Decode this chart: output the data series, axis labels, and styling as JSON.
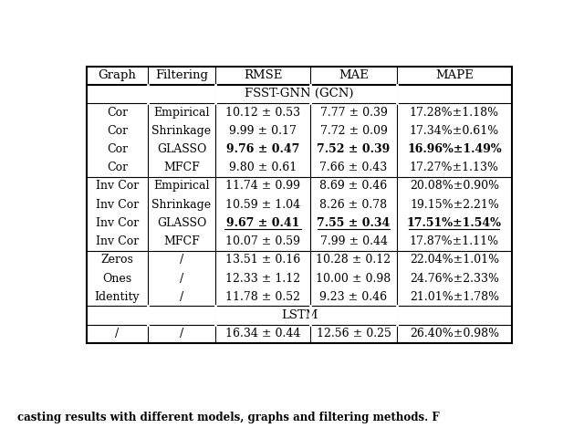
{
  "caption": "casting results with different models, graphs and filtering methods. F",
  "header": [
    "Graph",
    "Filtering",
    "RMSE",
    "MAE",
    "MAPE"
  ],
  "section_fsst": "FSST-GNN (GCN)",
  "section_lstm": "LSTM",
  "rows": [
    {
      "graph": "Cor",
      "filtering": "Empirical",
      "rmse": "10.12 ± 0.53",
      "mae": "7.77 ± 0.39",
      "mape": "17.28%±1.18%",
      "bold": false,
      "underline": false
    },
    {
      "graph": "Cor",
      "filtering": "Shrinkage",
      "rmse": "9.99 ± 0.17",
      "mae": "7.72 ± 0.09",
      "mape": "17.34%±0.61%",
      "bold": false,
      "underline": false
    },
    {
      "graph": "Cor",
      "filtering": "GLASSO",
      "rmse": "9.76 ± 0.47",
      "mae": "7.52 ± 0.39",
      "mape": "16.96%±1.49%",
      "bold": true,
      "underline": false
    },
    {
      "graph": "Cor",
      "filtering": "MFCF",
      "rmse": "9.80 ± 0.61",
      "mae": "7.66 ± 0.43",
      "mape": "17.27%±1.13%",
      "bold": false,
      "underline": false
    },
    {
      "graph": "Inv Cor",
      "filtering": "Empirical",
      "rmse": "11.74 ± 0.99",
      "mae": "8.69 ± 0.46",
      "mape": "20.08%±0.90%",
      "bold": false,
      "underline": false
    },
    {
      "graph": "Inv Cor",
      "filtering": "Shrinkage",
      "rmse": "10.59 ± 1.04",
      "mae": "8.26 ± 0.78",
      "mape": "19.15%±2.21%",
      "bold": false,
      "underline": false
    },
    {
      "graph": "Inv Cor",
      "filtering": "GLASSO",
      "rmse": "9.67 ± 0.41",
      "mae": "7.55 ± 0.34",
      "mape": "17.51%±1.54%",
      "bold": true,
      "underline": true
    },
    {
      "graph": "Inv Cor",
      "filtering": "MFCF",
      "rmse": "10.07 ± 0.59",
      "mae": "7.99 ± 0.44",
      "mape": "17.87%±1.11%",
      "bold": false,
      "underline": false
    },
    {
      "graph": "Zeros",
      "filtering": "/",
      "rmse": "13.51 ± 0.16",
      "mae": "10.28 ± 0.12",
      "mape": "22.04%±1.01%",
      "bold": false,
      "underline": false
    },
    {
      "graph": "Ones",
      "filtering": "/",
      "rmse": "12.33 ± 1.12",
      "mae": "10.00 ± 0.98",
      "mape": "24.76%±2.33%",
      "bold": false,
      "underline": false
    },
    {
      "graph": "Identity",
      "filtering": "/",
      "rmse": "11.78 ± 0.52",
      "mae": "9.23 ± 0.46",
      "mape": "21.01%±1.78%",
      "bold": false,
      "underline": false
    },
    {
      "graph": "/",
      "filtering": "/",
      "rmse": "16.34 ± 0.44",
      "mae": "12.56 ± 0.25",
      "mape": "26.40%±0.98%",
      "bold": false,
      "underline": false
    }
  ],
  "bg_color": "#ffffff",
  "text_color": "#000000",
  "font_size": 9.0,
  "header_font_size": 9.5,
  "section_font_size": 9.5,
  "caption_font_size": 8.5
}
